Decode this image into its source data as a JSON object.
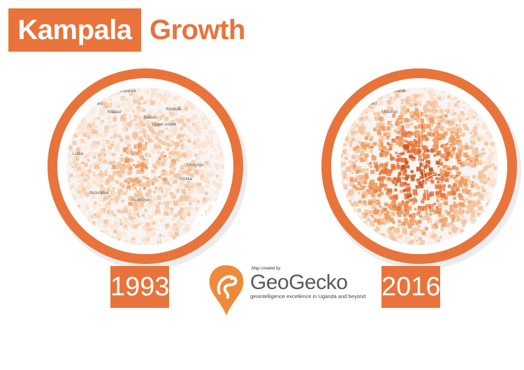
{
  "header": {
    "title_highlight": "Kampala",
    "title_rest": "Growth"
  },
  "maps": [
    {
      "year": "1993",
      "density": 0.35,
      "labels": [
        "Kazo Ward",
        "Kanyanya",
        "Kisaasi",
        "Kwatule",
        "Bukoto",
        "Upper estate",
        "Lubia",
        "Mutundwe",
        "Nsambya",
        "Kireka",
        "Mutungo"
      ]
    },
    {
      "year": "2016",
      "density": 0.8,
      "labels": [
        "Kazo Ward",
        "Kwatule",
        "Mutungo"
      ]
    }
  ],
  "logo": {
    "credit": "Map created by",
    "name": "GeoGecko",
    "tagline": "geointelligence excellence in Uganda and beyond"
  },
  "colors": {
    "accent": "#e8743c",
    "ring": "#e8743c"
  }
}
